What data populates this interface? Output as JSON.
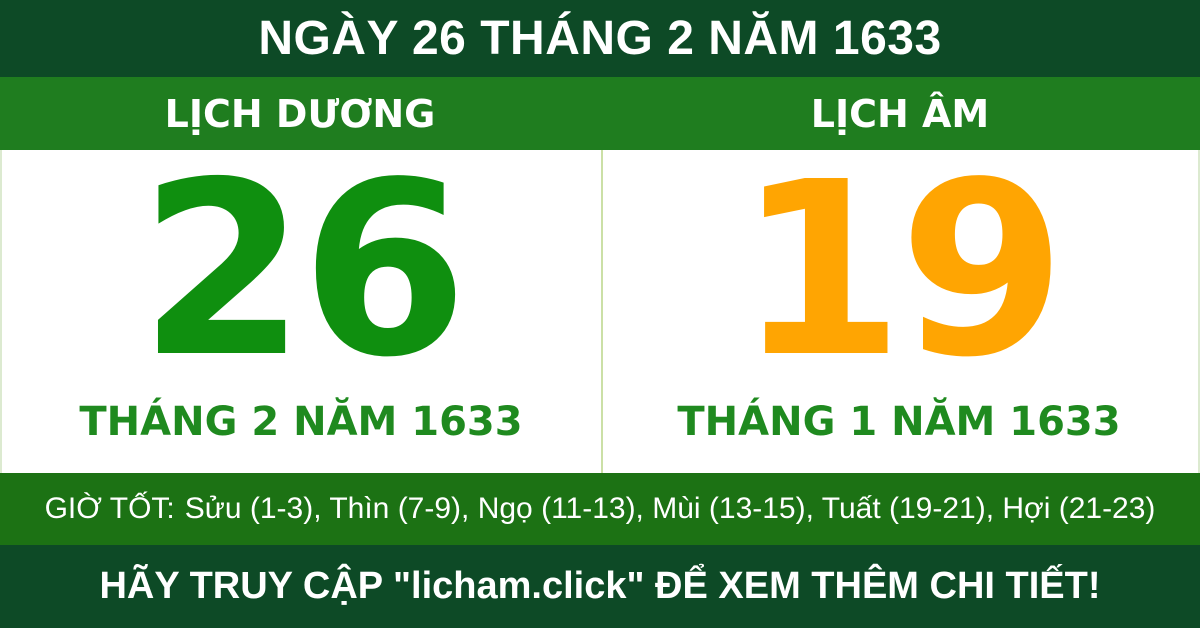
{
  "title_bar": {
    "text": "NGÀY 26 THÁNG 2 NĂM 1633"
  },
  "calendar": {
    "solar": {
      "header": "LỊCH DƯƠNG",
      "day": "26",
      "month_year": "THÁNG 2 NĂM 1633"
    },
    "lunar": {
      "header": "LỊCH ÂM",
      "day": "19",
      "month_year": "THÁNG 1 NĂM 1633"
    }
  },
  "good_hours": {
    "label": "GIỜ TỐT:",
    "list": "Sửu (1-3), Thìn (7-9), Ngọ (11-13), Mùi (13-15), Tuất (19-21), Hợi (21-23)"
  },
  "footer": {
    "text": "HÃY TRUY CẬP \"licham.click\" ĐỂ XEM THÊM CHI TIẾT!"
  },
  "colors": {
    "dark_green_bars": "#0d4a26",
    "header_band_green": "#1f7d1f",
    "hours_bar_green": "#1c7214",
    "solar_day_green": "#0f8f0f",
    "month_label_green": "#1f8a1f",
    "lunar_day_orange": "#ffa502",
    "divider_pale_green": "#cbe0a6",
    "panel_background": "#ffffff"
  }
}
